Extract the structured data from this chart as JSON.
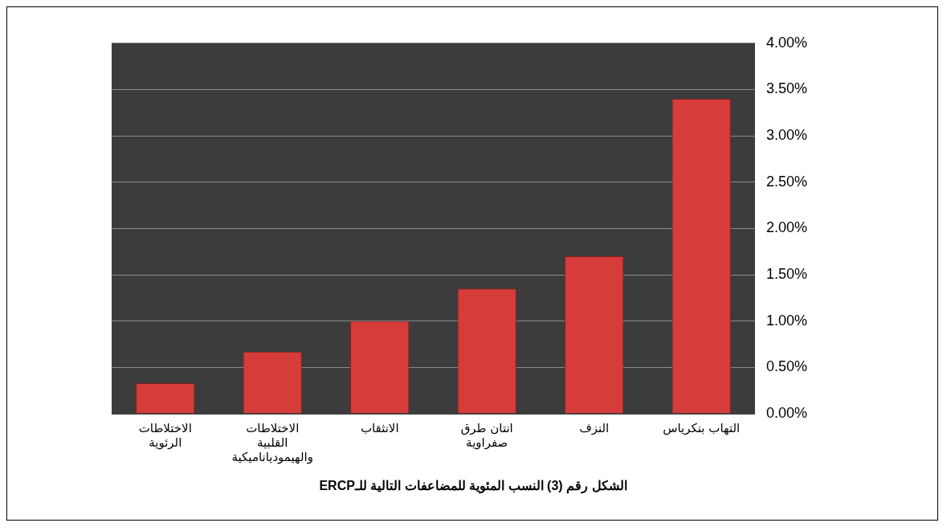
{
  "chart_data": {
    "type": "bar",
    "title": "الشكل رقم (3) النسب المئوية للمضاعفات التالية للـERCP",
    "categories": [
      "الاختلاطات الرئوية",
      "الاختلاطات القلبية والهيمودياناميكية",
      "الانثقاب",
      "انتان طرق صفراوية",
      "النزف",
      "التهاب بنكرياس"
    ],
    "values": [
      0.33,
      0.67,
      1.0,
      1.35,
      1.7,
      3.4
    ],
    "color": "#d63c3a",
    "ylim": [
      0,
      4
    ],
    "yticks": [
      {
        "value": 0,
        "label": "0.00%"
      },
      {
        "value": 0.5,
        "label": "0.50%"
      },
      {
        "value": 1,
        "label": "1.00%"
      },
      {
        "value": 1.5,
        "label": "1.50%"
      },
      {
        "value": 2,
        "label": "2.00%"
      },
      {
        "value": 2.5,
        "label": "2.50%"
      },
      {
        "value": 3,
        "label": "3.00%"
      },
      {
        "value": 3.5,
        "label": "3.50%"
      },
      {
        "value": 4,
        "label": "4.00%"
      }
    ],
    "grid": "y",
    "legend": false
  }
}
